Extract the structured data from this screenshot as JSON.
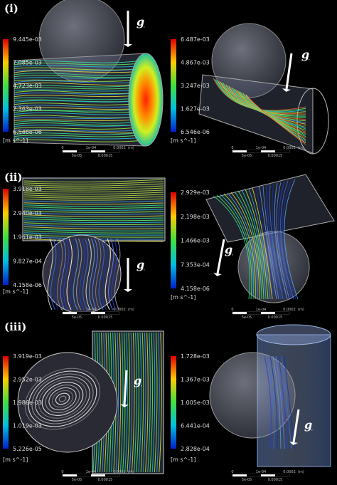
{
  "rows": [
    {
      "label": "(i)",
      "panels": [
        {
          "colorbar": [
            "9.445e-03",
            "7.085e-03",
            "4.723e-03",
            "2.363e-03",
            "6.546e-06"
          ],
          "unit": "[m s^-1]",
          "g": "g",
          "scale": {
            "top": [
              "0",
              "1e-04",
              "0.0002",
              "(m)"
            ],
            "bottom": [
              "5e-05",
              "0.00015"
            ]
          }
        },
        {
          "colorbar": [
            "6.487e-03",
            "4.867e-03",
            "3.247e-03",
            "1.627e-03",
            "6.546e-06"
          ],
          "unit": "[m s^-1]",
          "g": "g",
          "scale": {
            "top": [
              "0",
              "1e-04",
              "0.0002",
              "(m)"
            ],
            "bottom": [
              "5e-05",
              "0.00015"
            ]
          }
        }
      ]
    },
    {
      "label": "(ii)",
      "panels": [
        {
          "colorbar": [
            "3.918e-03",
            "2.940e-03",
            "1.961e-03",
            "9.827e-04",
            "4.158e-06"
          ],
          "unit": "[m s^-1]",
          "g": "g",
          "scale": {
            "top": [
              "0",
              "1e-04",
              "0.0002",
              "(m)"
            ],
            "bottom": [
              "5e-05",
              "0.00015"
            ]
          }
        },
        {
          "colorbar": [
            "2.929e-03",
            "2.198e-03",
            "1.466e-03",
            "7.353e-04",
            "4.158e-06"
          ],
          "unit": "[m s^-1]",
          "g": "g",
          "scale": {
            "top": [
              "0",
              "1e-04",
              "0.0002",
              "(m)"
            ],
            "bottom": [
              "5e-05",
              "0.00015"
            ]
          }
        }
      ]
    },
    {
      "label": "(iii)",
      "panels": [
        {
          "colorbar": [
            "3.919e-03",
            "2.952e-03",
            "1.986e-03",
            "1.019e-03",
            "5.226e-05"
          ],
          "unit": "[m s^-1]",
          "g": "g",
          "scale": {
            "top": [
              "0",
              "1e-04",
              "0.0002",
              "(m)"
            ],
            "bottom": [
              "5e-05",
              "0.00015"
            ]
          }
        },
        {
          "colorbar": [
            "1.728e-03",
            "1.367e-03",
            "1.005e-03",
            "6.441e-04",
            "2.828e-04"
          ],
          "unit": "[m s^-1]",
          "g": "g",
          "scale": {
            "top": [
              "0",
              "1e-04",
              "0.0002",
              "(m)"
            ],
            "bottom": [
              "5e-05",
              "0.00015"
            ]
          }
        }
      ]
    }
  ]
}
